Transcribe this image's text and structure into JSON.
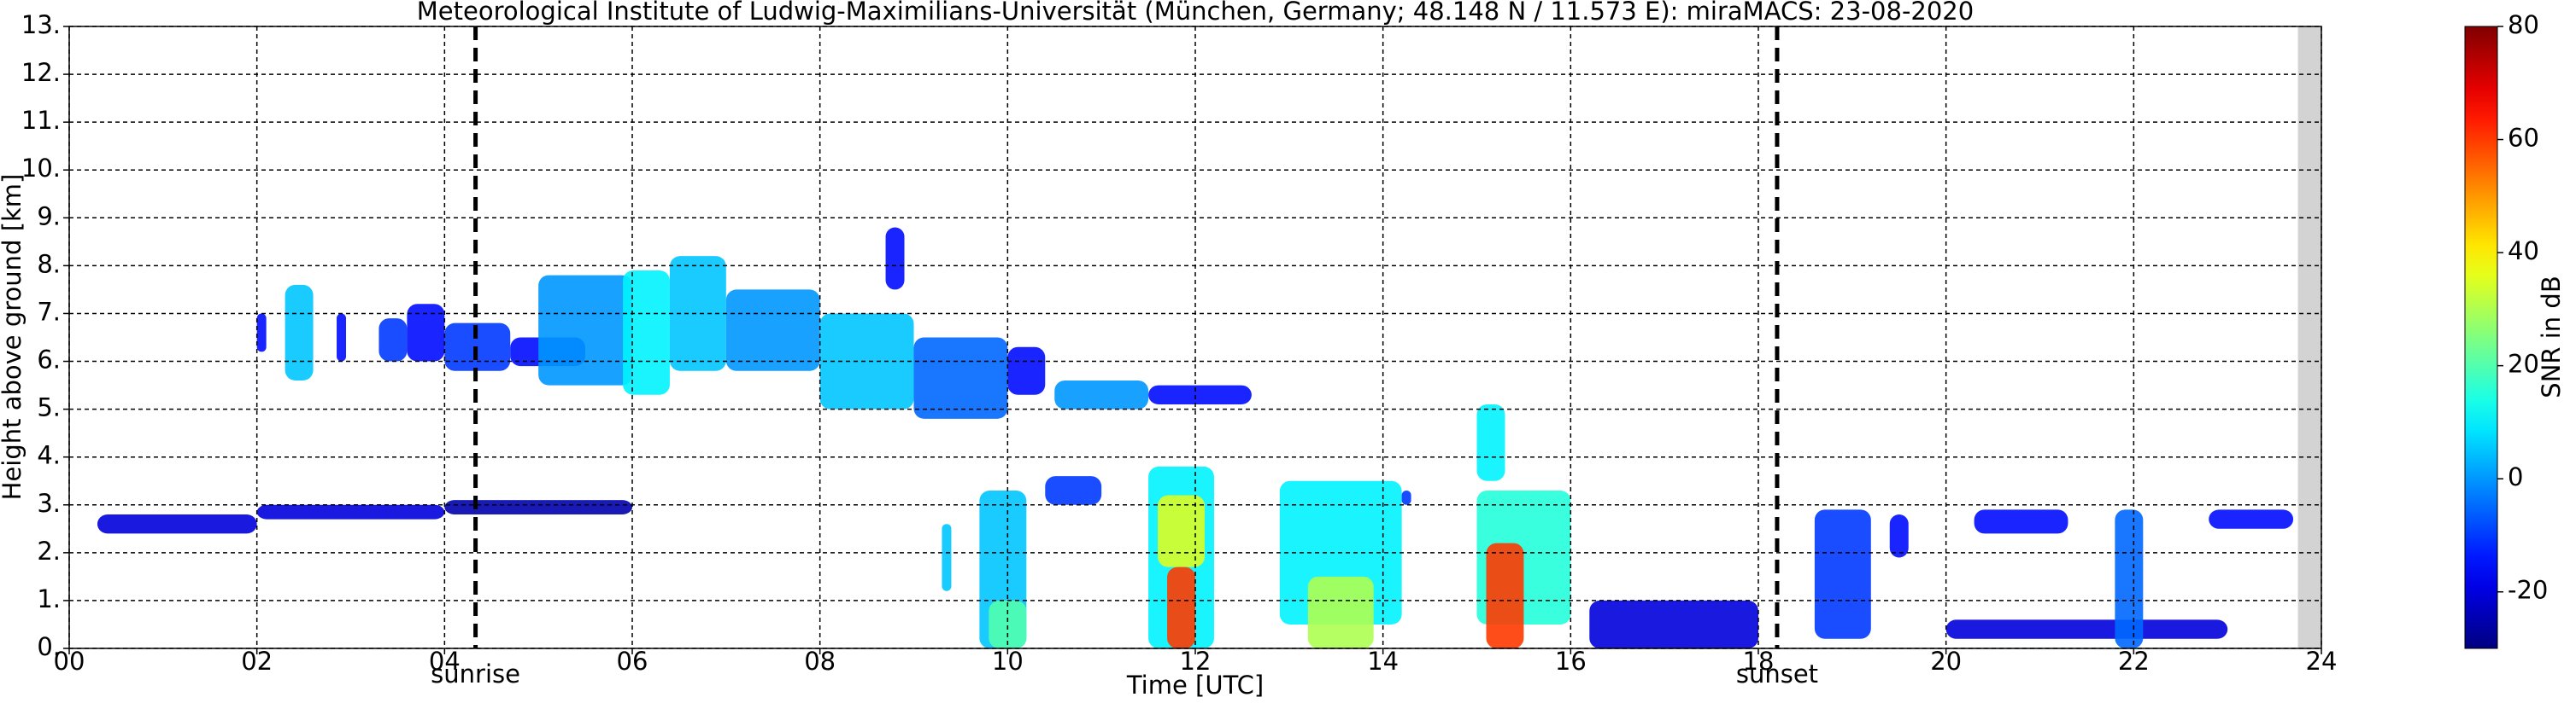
{
  "chart_data": {
    "type": "radar",
    "title": "Meteorological Institute of Ludwig-Maximilians-Universität (München, Germany; 48.148 N / 11.573 E):    miraMACS: 23-08-2020",
    "x_label": "Time [UTC]",
    "y_label": "Height above ground [km]",
    "colorbar_label": "SNR in dB",
    "xlim": [
      0,
      24
    ],
    "xticks": [
      {
        "value": 0,
        "label": "00"
      },
      {
        "value": 2,
        "label": "02"
      },
      {
        "value": 4,
        "label": "04"
      },
      {
        "value": 6,
        "label": "06"
      },
      {
        "value": 8,
        "label": "08"
      },
      {
        "value": 10,
        "label": "10"
      },
      {
        "value": 12,
        "label": "12"
      },
      {
        "value": 14,
        "label": "14"
      },
      {
        "value": 16,
        "label": "16"
      },
      {
        "value": 18,
        "label": "18"
      },
      {
        "value": 20,
        "label": "20"
      },
      {
        "value": 22,
        "label": "22"
      },
      {
        "value": 24,
        "label": "24"
      }
    ],
    "ylim": [
      0,
      13
    ],
    "yticks": [
      {
        "value": 0,
        "label": "0."
      },
      {
        "value": 1,
        "label": "1."
      },
      {
        "value": 2,
        "label": "2."
      },
      {
        "value": 3,
        "label": "3."
      },
      {
        "value": 4,
        "label": "4."
      },
      {
        "value": 5,
        "label": "5."
      },
      {
        "value": 6,
        "label": "6."
      },
      {
        "value": 7,
        "label": "7."
      },
      {
        "value": 8,
        "label": "8."
      },
      {
        "value": 9,
        "label": "9."
      },
      {
        "value": 10,
        "label": "10."
      },
      {
        "value": 11,
        "label": "11."
      },
      {
        "value": 12,
        "label": "12."
      },
      {
        "value": 13,
        "label": "13."
      }
    ],
    "clim": [
      -30,
      80
    ],
    "cticks": [
      -20,
      0,
      20,
      40,
      60,
      80
    ],
    "grid": true,
    "no_data_from": 23.75,
    "annotations": [
      {
        "label": "sunrise",
        "time": 4.33
      },
      {
        "label": "sunset",
        "time": 18.2
      }
    ],
    "echoes": [
      {
        "time": [
          2.0,
          2.1
        ],
        "height": [
          6.2,
          7.0
        ],
        "snr": -15
      },
      {
        "time": [
          2.3,
          2.6
        ],
        "height": [
          5.6,
          7.6
        ],
        "snr": 5
      },
      {
        "time": [
          2.85,
          2.95
        ],
        "height": [
          6.0,
          7.0
        ],
        "snr": -15
      },
      {
        "time": [
          3.3,
          3.6
        ],
        "height": [
          6.0,
          6.9
        ],
        "snr": -10
      },
      {
        "time": [
          3.6,
          4.0
        ],
        "height": [
          6.0,
          7.2
        ],
        "snr": -15
      },
      {
        "time": [
          4.0,
          4.7
        ],
        "height": [
          5.8,
          6.8
        ],
        "snr": -10
      },
      {
        "time": [
          4.7,
          5.5
        ],
        "height": [
          5.9,
          6.5
        ],
        "snr": -15
      },
      {
        "time": [
          5.0,
          6.0
        ],
        "height": [
          5.5,
          7.8
        ],
        "snr": 0
      },
      {
        "time": [
          5.9,
          6.4
        ],
        "height": [
          5.3,
          7.9
        ],
        "snr": 10
      },
      {
        "time": [
          6.4,
          7.0
        ],
        "height": [
          5.8,
          8.2
        ],
        "snr": 5
      },
      {
        "time": [
          7.0,
          8.0
        ],
        "height": [
          5.8,
          7.5
        ],
        "snr": 0
      },
      {
        "time": [
          8.0,
          9.0
        ],
        "height": [
          5.0,
          7.0
        ],
        "snr": 5
      },
      {
        "time": [
          8.7,
          8.9
        ],
        "height": [
          7.5,
          8.8
        ],
        "snr": -15
      },
      {
        "time": [
          9.0,
          10.0
        ],
        "height": [
          4.8,
          6.5
        ],
        "snr": -5
      },
      {
        "time": [
          10.0,
          10.4
        ],
        "height": [
          5.3,
          6.3
        ],
        "snr": -15
      },
      {
        "time": [
          10.5,
          11.5
        ],
        "height": [
          5.0,
          5.6
        ],
        "snr": 0
      },
      {
        "time": [
          11.5,
          12.6
        ],
        "height": [
          5.1,
          5.5
        ],
        "snr": -15
      },
      {
        "time": [
          0.3,
          2.0
        ],
        "height": [
          2.4,
          2.8
        ],
        "snr": -20
      },
      {
        "time": [
          2.0,
          4.0
        ],
        "height": [
          2.7,
          3.0
        ],
        "snr": -20
      },
      {
        "time": [
          4.0,
          6.0
        ],
        "height": [
          2.8,
          3.1
        ],
        "snr": -25
      },
      {
        "time": [
          9.3,
          9.4
        ],
        "height": [
          1.2,
          2.6
        ],
        "snr": 5
      },
      {
        "time": [
          9.7,
          10.2
        ],
        "height": [
          0,
          3.3
        ],
        "snr": 5
      },
      {
        "time": [
          9.8,
          10.2
        ],
        "height": [
          0,
          1.0
        ],
        "snr": 20
      },
      {
        "time": [
          10.4,
          11.0
        ],
        "height": [
          3.0,
          3.6
        ],
        "snr": -10
      },
      {
        "time": [
          11.5,
          12.2
        ],
        "height": [
          0,
          3.8
        ],
        "snr": 10
      },
      {
        "time": [
          11.6,
          12.1
        ],
        "height": [
          1.7,
          3.2
        ],
        "snr": 35
      },
      {
        "time": [
          11.7,
          12.0
        ],
        "height": [
          0,
          1.7
        ],
        "snr": 60
      },
      {
        "time": [
          12.9,
          14.2
        ],
        "height": [
          0.5,
          3.5
        ],
        "snr": 10
      },
      {
        "time": [
          13.2,
          13.9
        ],
        "height": [
          0,
          1.5
        ],
        "snr": 30
      },
      {
        "time": [
          14.2,
          14.3
        ],
        "height": [
          3.0,
          3.3
        ],
        "snr": -10
      },
      {
        "time": [
          15.0,
          15.3
        ],
        "height": [
          3.5,
          5.1
        ],
        "snr": 10
      },
      {
        "time": [
          15.0,
          16.0
        ],
        "height": [
          0.5,
          3.3
        ],
        "snr": 15
      },
      {
        "time": [
          15.1,
          15.5
        ],
        "height": [
          0,
          2.2
        ],
        "snr": 60
      },
      {
        "time": [
          16.2,
          18.0
        ],
        "height": [
          0,
          1.0
        ],
        "snr": -20
      },
      {
        "time": [
          18.6,
          19.2
        ],
        "height": [
          0.2,
          2.9
        ],
        "snr": -10
      },
      {
        "time": [
          19.4,
          19.6
        ],
        "height": [
          1.9,
          2.8
        ],
        "snr": -15
      },
      {
        "time": [
          20.0,
          23.0
        ],
        "height": [
          0.2,
          0.6
        ],
        "snr": -20
      },
      {
        "time": [
          20.3,
          21.3
        ],
        "height": [
          2.4,
          2.9
        ],
        "snr": -15
      },
      {
        "time": [
          21.8,
          22.1
        ],
        "height": [
          0,
          2.9
        ],
        "snr": -5
      },
      {
        "time": [
          22.8,
          23.7
        ],
        "height": [
          2.5,
          2.9
        ],
        "snr": -15
      }
    ]
  }
}
